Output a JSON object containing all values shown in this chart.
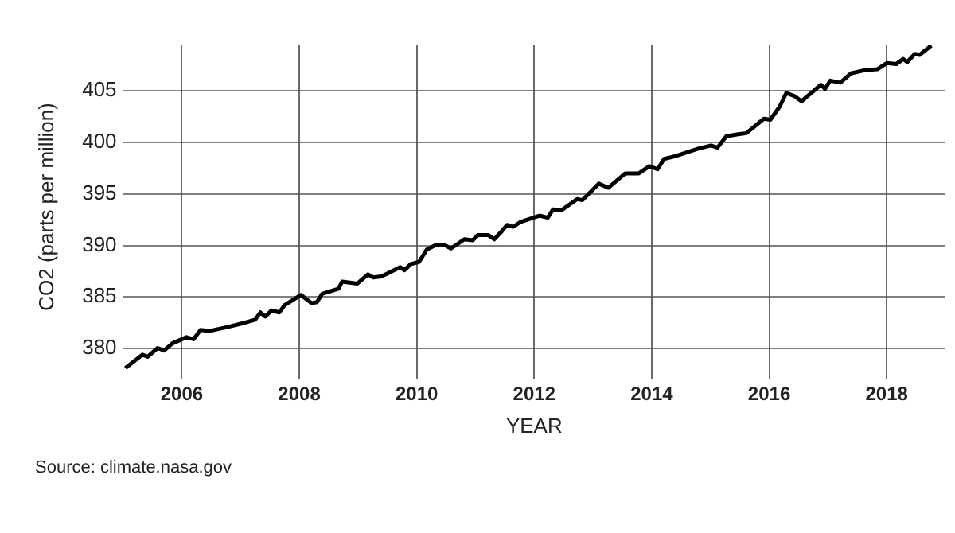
{
  "chart_data": {
    "type": "line",
    "xlabel": "YEAR",
    "ylabel": "CO2 (parts per million)",
    "annotations": [
      "Source: climate.nasa.gov"
    ],
    "xlim": [
      2005,
      2019
    ],
    "xticks": [
      2006,
      2008,
      2010,
      2012,
      2014,
      2016,
      2018
    ],
    "ylim": [
      378,
      409.5
    ],
    "yticks": [
      380,
      385,
      390,
      395,
      400,
      405
    ],
    "grid": true,
    "legend": false,
    "marker": "none",
    "line_style": "solid",
    "series": [
      {
        "color": "#000000",
        "x": [
          2005.04,
          2005.33,
          2005.42,
          2005.59,
          2005.7,
          2005.84,
          2006.08,
          2006.2,
          2006.32,
          2006.47,
          2006.79,
          2007.07,
          2007.25,
          2007.34,
          2007.42,
          2007.53,
          2007.66,
          2007.75,
          2008.03,
          2008.21,
          2008.3,
          2008.39,
          2008.67,
          2008.73,
          2008.99,
          2009.17,
          2009.26,
          2009.4,
          2009.72,
          2009.79,
          2009.9,
          2010.04,
          2010.17,
          2010.31,
          2010.49,
          2010.58,
          2010.81,
          2010.95,
          2011.04,
          2011.22,
          2011.32,
          2011.45,
          2011.54,
          2011.64,
          2011.77,
          2012.09,
          2012.23,
          2012.32,
          2012.46,
          2012.73,
          2012.82,
          2013.1,
          2013.26,
          2013.55,
          2013.78,
          2013.96,
          2014.1,
          2014.21,
          2014.36,
          2014.47,
          2014.79,
          2015.01,
          2015.12,
          2015.27,
          2015.47,
          2015.61,
          2015.91,
          2016.02,
          2016.18,
          2016.29,
          2016.43,
          2016.55,
          2016.88,
          2016.95,
          2017.04,
          2017.21,
          2017.39,
          2017.62,
          2017.84,
          2018.0,
          2018.16,
          2018.28,
          2018.35,
          2018.48,
          2018.56,
          2018.76
        ],
        "values": [
          378.1,
          379.4,
          379.2,
          380.05,
          379.8,
          380.5,
          381.1,
          380.9,
          381.8,
          381.7,
          382.1,
          382.5,
          382.8,
          383.5,
          383.1,
          383.7,
          383.5,
          384.2,
          385.2,
          384.4,
          384.5,
          385.3,
          385.8,
          386.5,
          386.3,
          387.2,
          386.9,
          387.0,
          387.9,
          387.6,
          388.2,
          388.4,
          389.6,
          390.0,
          390.0,
          389.7,
          390.6,
          390.5,
          391.0,
          391.0,
          390.6,
          391.4,
          392.0,
          391.8,
          392.3,
          392.9,
          392.7,
          393.5,
          393.4,
          394.5,
          394.4,
          396.0,
          395.6,
          397.0,
          397.0,
          397.7,
          397.4,
          398.4,
          398.6,
          398.8,
          399.4,
          399.7,
          399.5,
          400.6,
          400.8,
          400.9,
          402.3,
          402.2,
          403.5,
          404.8,
          404.5,
          404.0,
          405.6,
          405.2,
          406.0,
          405.8,
          406.7,
          407.0,
          407.1,
          407.7,
          407.6,
          408.1,
          407.8,
          408.6,
          408.5,
          409.4
        ]
      }
    ]
  }
}
